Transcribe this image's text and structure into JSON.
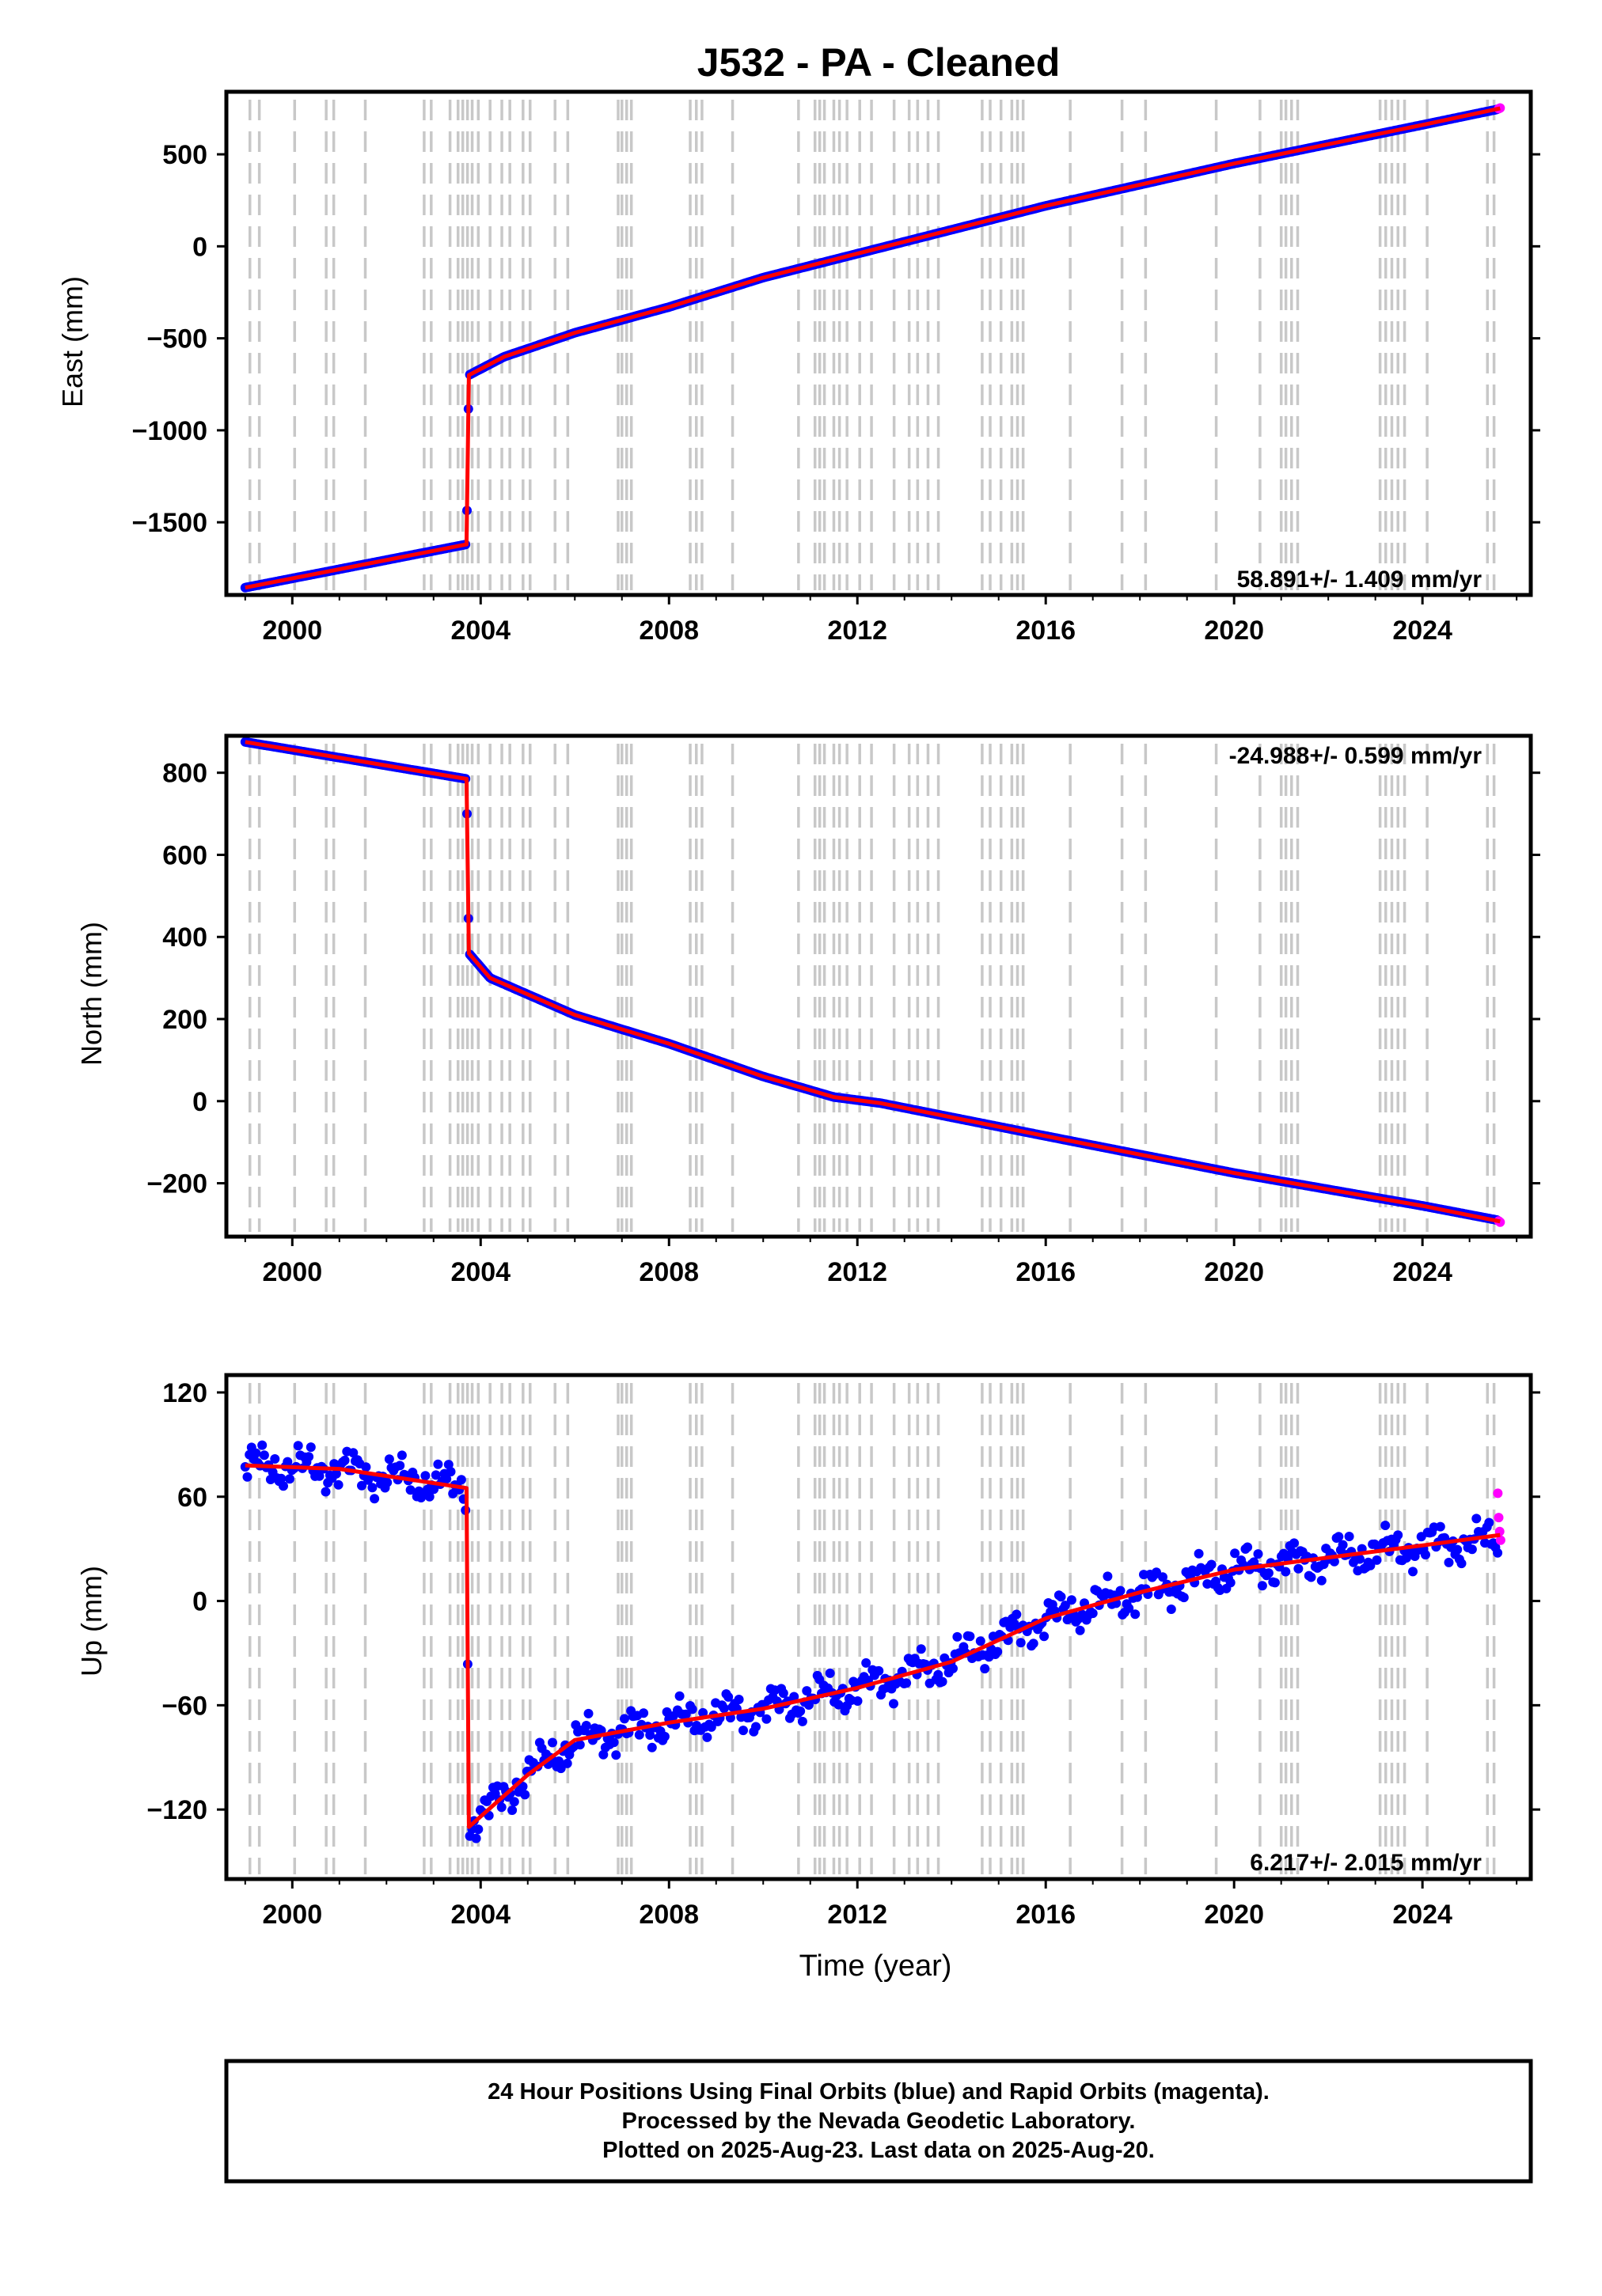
{
  "title": "J532  - PA - Cleaned",
  "colors": {
    "final_orbits": "#0000ff",
    "rapid_orbits": "#ff00ff",
    "model": "#ff0000",
    "event_lines": "#c8c8c8",
    "axes": "#000000"
  },
  "chart_data": [
    {
      "type": "scatter",
      "panel": "east",
      "ylabel": "East (mm)",
      "xlabel": "",
      "xlim": [
        1998.6,
        2026.3
      ],
      "ylim": [
        -1895,
        840
      ],
      "yticks": [
        500,
        0,
        -500,
        -1000,
        -1500
      ],
      "ytick_labels": [
        "500",
        "0",
        "−500",
        "−1000",
        "−1500"
      ],
      "xticks": [
        2000,
        2004,
        2008,
        2012,
        2016,
        2020,
        2024
      ],
      "xtick_labels": [
        "2000",
        "2004",
        "2008",
        "2012",
        "2016",
        "2020",
        "2024"
      ],
      "grid": false,
      "rate_label": "58.891+/- 1.409 mm/yr",
      "rate_position": "bottom-right",
      "series": [
        {
          "role": "final-orbits",
          "color": "#0000ff",
          "x": [
            1999.0,
            2003.7,
            2003.75,
            2004.5,
            2006,
            2008,
            2010,
            2012,
            2016,
            2020,
            2024,
            2025.6
          ],
          "y": [
            -1855,
            -1620,
            -700,
            -600,
            -470,
            -330,
            -170,
            -40,
            220,
            450,
            660,
            745
          ]
        },
        {
          "role": "rapid-orbits",
          "color": "#ff00ff",
          "x": [
            2025.62,
            2025.65
          ],
          "y": [
            748,
            752
          ]
        },
        {
          "role": "model",
          "color": "#ff0000",
          "x": [
            1999.0,
            2003.7,
            2003.75,
            2004.5,
            2006,
            2008,
            2010,
            2012,
            2016,
            2020,
            2024,
            2025.65
          ],
          "y": [
            -1855,
            -1620,
            -700,
            -600,
            -470,
            -330,
            -170,
            -40,
            220,
            450,
            660,
            750
          ]
        }
      ]
    },
    {
      "type": "scatter",
      "panel": "north",
      "ylabel": "North (mm)",
      "xlabel": "",
      "xlim": [
        1998.6,
        2026.3
      ],
      "ylim": [
        -330,
        890
      ],
      "yticks": [
        800,
        600,
        400,
        200,
        0,
        -200
      ],
      "ytick_labels": [
        "800",
        "600",
        "400",
        "200",
        "0",
        "−200"
      ],
      "xticks": [
        2000,
        2004,
        2008,
        2012,
        2016,
        2020,
        2024
      ],
      "xtick_labels": [
        "2000",
        "2004",
        "2008",
        "2012",
        "2016",
        "2020",
        "2024"
      ],
      "grid": false,
      "rate_label": "-24.988+/- 0.599 mm/yr",
      "rate_position": "top-right",
      "series": [
        {
          "role": "final-orbits",
          "color": "#0000ff",
          "x": [
            1999.0,
            2003.7,
            2003.75,
            2004.2,
            2006,
            2008,
            2010,
            2011.5,
            2012.5,
            2016,
            2020,
            2024,
            2025.6
          ],
          "y": [
            875,
            785,
            360,
            300,
            210,
            140,
            60,
            10,
            -5,
            -85,
            -175,
            -255,
            -290
          ]
        },
        {
          "role": "rapid-orbits",
          "color": "#ff00ff",
          "x": [
            2025.62,
            2025.65
          ],
          "y": [
            -292,
            -295
          ]
        },
        {
          "role": "model",
          "color": "#ff0000",
          "x": [
            1999.0,
            2003.7,
            2003.75,
            2004.2,
            2006,
            2008,
            2010,
            2011.5,
            2012.5,
            2016,
            2020,
            2024,
            2025.65
          ],
          "y": [
            875,
            785,
            360,
            300,
            210,
            140,
            60,
            10,
            -5,
            -85,
            -175,
            -255,
            -293
          ]
        }
      ]
    },
    {
      "type": "scatter",
      "panel": "up",
      "ylabel": "Up (mm)",
      "xlabel": "Time (year)",
      "xlim": [
        1998.6,
        2026.3
      ],
      "ylim": [
        -160,
        130
      ],
      "yticks": [
        120,
        60,
        0,
        -60,
        -120
      ],
      "ytick_labels": [
        "120",
        "60",
        "0",
        "−60",
        "−120"
      ],
      "xticks": [
        2000,
        2004,
        2008,
        2012,
        2016,
        2020,
        2024
      ],
      "xtick_labels": [
        "2000",
        "2004",
        "2008",
        "2012",
        "2016",
        "2020",
        "2024"
      ],
      "grid": false,
      "rate_label": "6.217+/- 2.015 mm/yr",
      "rate_position": "bottom-right",
      "series": [
        {
          "role": "final-orbits",
          "color": "#0000ff",
          "x": [
            1999.0,
            2001,
            2003.7,
            2003.75,
            2005,
            2006,
            2008,
            2010,
            2012,
            2014,
            2016,
            2018,
            2020,
            2022,
            2024,
            2025.6
          ],
          "y": [
            78,
            76,
            65,
            -130,
            -100,
            -80,
            -70,
            -62,
            -50,
            -35,
            -10,
            5,
            18,
            25,
            32,
            35
          ]
        },
        {
          "role": "rapid-orbits",
          "color": "#ff00ff",
          "x": [
            2025.6,
            2025.62,
            2025.64,
            2025.66
          ],
          "y": [
            62,
            48,
            40,
            35
          ]
        },
        {
          "role": "model",
          "color": "#ff0000",
          "x": [
            1999.0,
            2001,
            2003.7,
            2003.75,
            2005,
            2006,
            2008,
            2010,
            2012,
            2014,
            2016,
            2018,
            2020,
            2022,
            2024,
            2025.65
          ],
          "y": [
            78,
            76,
            65,
            -130,
            -100,
            -80,
            -70,
            -62,
            -50,
            -35,
            -10,
            5,
            18,
            25,
            32,
            38
          ]
        }
      ]
    }
  ],
  "event_line_years": [
    1999.1,
    1999.3,
    2000.05,
    2000.72,
    2000.88,
    2001.55,
    2002.8,
    2002.95,
    2003.35,
    2003.52,
    2003.62,
    2003.72,
    2003.82,
    2003.95,
    2004.2,
    2004.45,
    2004.62,
    2004.9,
    2005.05,
    2005.58,
    2005.85,
    2006.92,
    2007.0,
    2007.1,
    2007.2,
    2008.45,
    2008.58,
    2008.7,
    2009.35,
    2010.75,
    2011.1,
    2011.2,
    2011.3,
    2011.5,
    2011.62,
    2011.78,
    2012.05,
    2012.3,
    2012.78,
    2013.1,
    2013.28,
    2013.5,
    2013.72,
    2014.65,
    2014.82,
    2015.05,
    2015.28,
    2015.4,
    2015.52,
    2016.52,
    2017.62,
    2018.12,
    2019.62,
    2020.55,
    2021.0,
    2021.1,
    2021.22,
    2021.35,
    2023.1,
    2023.22,
    2023.35,
    2023.48,
    2023.62,
    2024.1,
    2025.38,
    2025.52
  ],
  "footer": {
    "line1": "24 Hour Positions Using Final Orbits (blue) and Rapid Orbits (magenta).",
    "line2": "Processed by the Nevada Geodetic Laboratory.",
    "line3": "Plotted on 2025-Aug-23. Last data on 2025-Aug-20."
  }
}
